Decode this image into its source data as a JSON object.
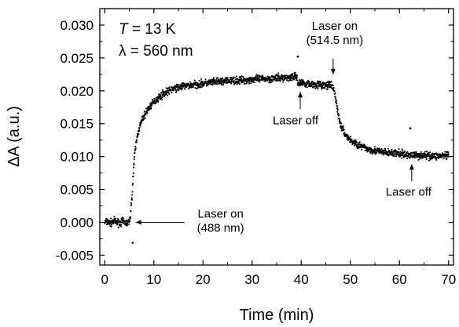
{
  "chart_data": {
    "type": "scatter",
    "xlabel": "Time (min)",
    "ylabel": "ΔA (a.u.)",
    "xlim": [
      -1,
      71
    ],
    "ylim": [
      -0.0065,
      0.0325
    ],
    "xticks": [
      0,
      10,
      20,
      30,
      40,
      50,
      60,
      70
    ],
    "xtick_labels": [
      "0",
      "10",
      "20",
      "30",
      "40",
      "50",
      "60",
      "70"
    ],
    "yticks": [
      -0.005,
      0.0,
      0.005,
      0.01,
      0.015,
      0.02,
      0.025,
      0.03
    ],
    "ytick_labels": [
      "-0.005",
      "0.000",
      "0.005",
      "0.010",
      "0.015",
      "0.020",
      "0.025",
      "0.030"
    ],
    "grid": false,
    "conditions": {
      "temperature": {
        "symbol": "T",
        "text": " = 13 K"
      },
      "wavelength": {
        "text": "λ = 560 nm"
      }
    },
    "annotations": [
      {
        "lines": [
          "Laser on",
          "(488 nm)"
        ],
        "x": 5.5,
        "y": 0.0
      },
      {
        "lines": [
          "Laser off"
        ],
        "x": 39.8,
        "y": 0.0203
      },
      {
        "lines": [
          "Laser on",
          "(514.5 nm)"
        ],
        "x": 46.5,
        "y": 0.0225
      },
      {
        "lines": [
          "Laser off"
        ],
        "x": 62.5,
        "y": 0.0092
      }
    ],
    "series": [
      {
        "x": [
          0,
          0.5,
          1,
          1.5,
          2,
          2.5,
          3,
          3.5,
          4,
          4.5,
          5,
          5.3,
          5.6,
          5.9,
          6.2,
          6.6,
          7,
          7.5,
          8,
          9,
          10,
          11,
          12,
          14,
          16,
          18,
          20,
          22,
          25,
          28,
          30,
          32,
          35,
          37,
          39,
          39.5,
          40,
          41,
          42,
          43,
          44,
          45,
          46,
          46.5,
          47,
          47.5,
          48,
          49,
          50,
          51,
          52,
          53,
          55,
          57,
          59,
          61,
          63,
          65,
          67,
          69,
          70
        ],
        "y": [
          0.0,
          0.0001,
          -0.0001,
          0.0,
          0.0002,
          0.0,
          -0.0001,
          0.0001,
          0.0,
          -0.0001,
          0.0,
          0.0015,
          0.0045,
          0.0085,
          0.011,
          0.013,
          0.0143,
          0.0153,
          0.0162,
          0.0174,
          0.0183,
          0.019,
          0.0196,
          0.0203,
          0.0207,
          0.0209,
          0.0211,
          0.0213,
          0.0215,
          0.0216,
          0.0217,
          0.0218,
          0.0219,
          0.022,
          0.0222,
          0.021,
          0.0213,
          0.0211,
          0.021,
          0.021,
          0.0209,
          0.0208,
          0.0208,
          0.0205,
          0.019,
          0.0165,
          0.0148,
          0.0133,
          0.0125,
          0.012,
          0.0116,
          0.0113,
          0.0109,
          0.0106,
          0.0105,
          0.0103,
          0.0102,
          0.0102,
          0.0101,
          0.0101,
          0.0101
        ]
      }
    ],
    "outliers": [
      {
        "x": 5.7,
        "y": -0.0031
      },
      {
        "x": 39.3,
        "y": 0.0252
      },
      {
        "x": 62.2,
        "y": 0.0143
      }
    ]
  }
}
